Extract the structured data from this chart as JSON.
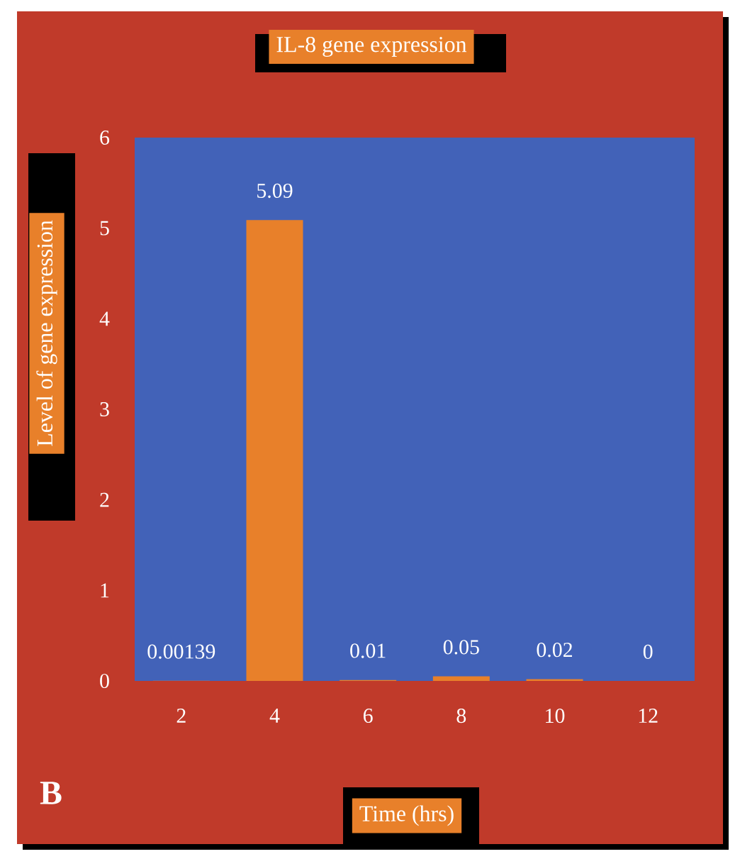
{
  "chart_data": {
    "type": "bar",
    "title": "IL-8 gene expression",
    "xlabel": "Time (hrs)",
    "ylabel": "Level of gene expression",
    "annotations": [
      "B"
    ],
    "categories": [
      "2",
      "4",
      "6",
      "8",
      "10",
      "12"
    ],
    "values": [
      0.00139,
      5.09,
      0.01,
      0.05,
      0.02,
      0
    ],
    "color": "#e8802a",
    "ylim": [
      0,
      6
    ],
    "yticks": [
      0,
      1,
      2,
      3,
      4,
      5,
      6
    ],
    "data_labels": true
  }
}
